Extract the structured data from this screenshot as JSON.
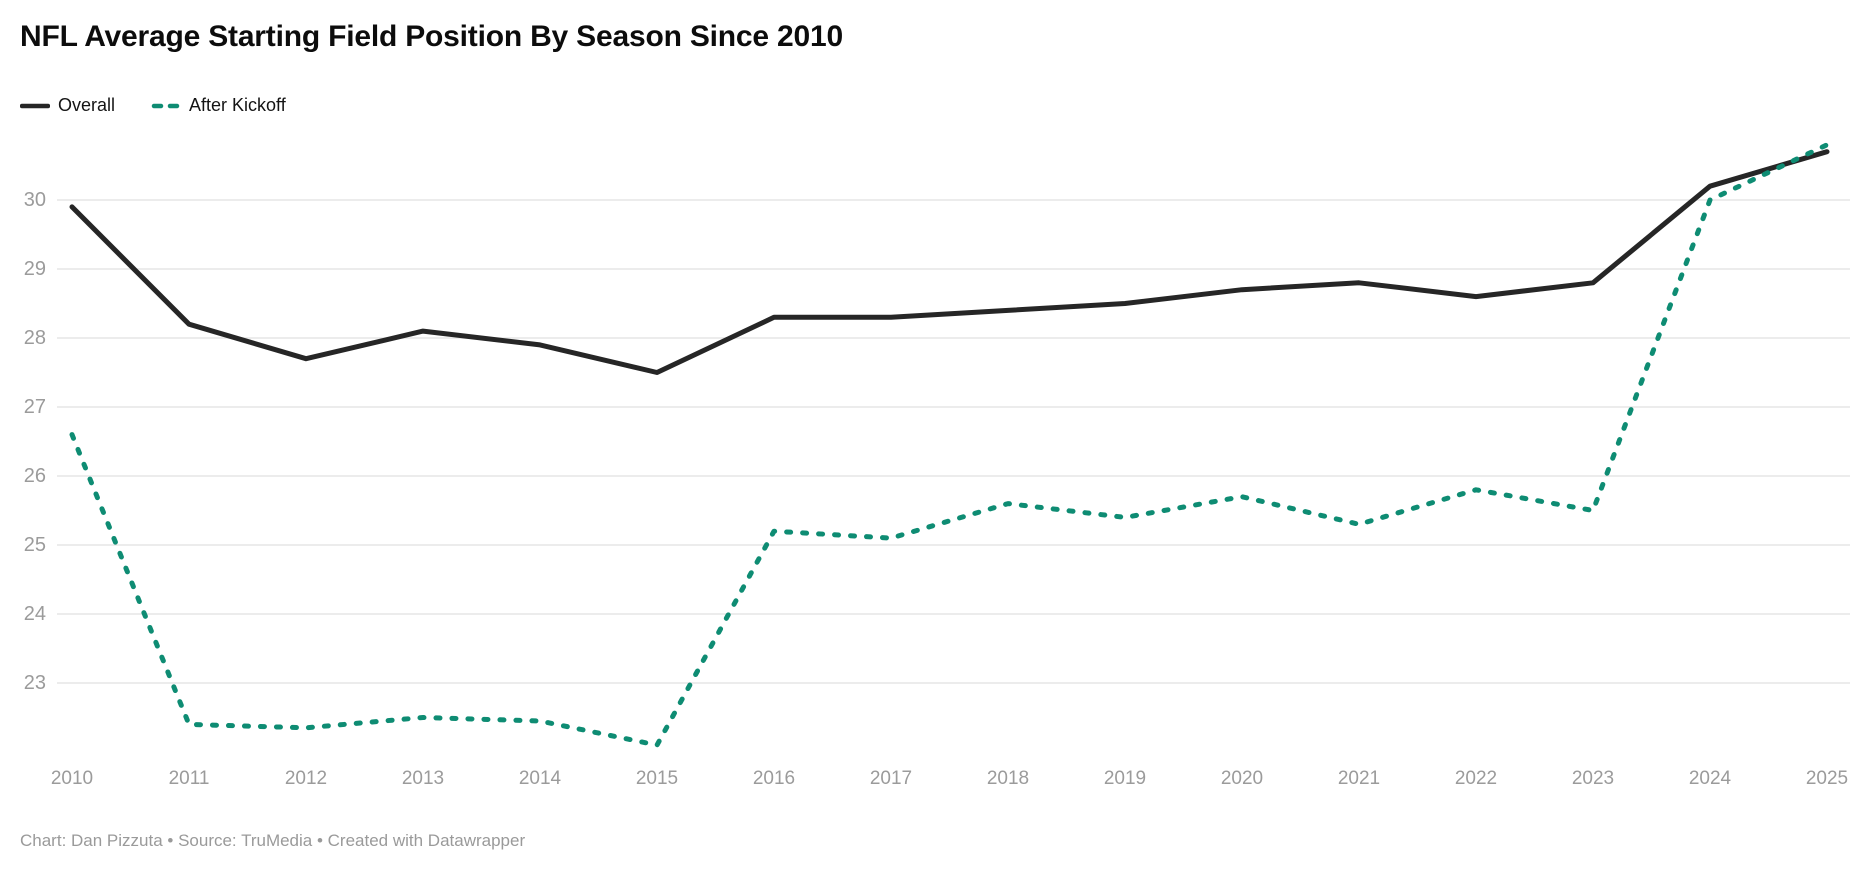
{
  "header": {
    "title": "NFL Average Starting Field Position By Season Since 2010"
  },
  "legend": {
    "items": [
      {
        "label": "Overall",
        "color": "#262626",
        "style": "solid"
      },
      {
        "label": "After Kickoff",
        "color": "#0e8c73",
        "style": "dashed"
      }
    ]
  },
  "footer": {
    "text": "Chart: Dan Pizzuta • Source: TruMedia • Created with Datawrapper"
  },
  "colors": {
    "overall_line": "#262626",
    "after_kickoff_line": "#0e8c73",
    "axis_label": "#9b9b9b",
    "gridline": "#e6e6e6",
    "footer_text": "#9a9a9a",
    "title_text": "#0c0c0c"
  },
  "chart_data": {
    "type": "line",
    "title": "NFL Average Starting Field Position By Season Since 2010",
    "xlabel": "",
    "ylabel": "",
    "x": [
      2010,
      2011,
      2012,
      2013,
      2014,
      2015,
      2016,
      2017,
      2018,
      2019,
      2020,
      2021,
      2022,
      2023,
      2024,
      2025
    ],
    "series": [
      {
        "name": "Overall",
        "style": "solid",
        "color": "#262626",
        "values": [
          29.9,
          28.2,
          27.7,
          28.1,
          27.9,
          27.5,
          28.3,
          28.3,
          28.4,
          28.5,
          28.7,
          28.8,
          28.6,
          28.8,
          30.2,
          30.7
        ]
      },
      {
        "name": "After Kickoff",
        "style": "dashed",
        "color": "#0e8c73",
        "values": [
          26.6,
          22.4,
          22.35,
          22.5,
          22.45,
          22.1,
          25.2,
          25.1,
          25.6,
          25.4,
          25.7,
          25.3,
          25.8,
          25.5,
          30.0,
          30.8
        ]
      }
    ],
    "y_ticks": [
      23,
      24,
      25,
      26,
      27,
      28,
      29,
      30
    ],
    "ylim": [
      22.0,
      31.0
    ],
    "grid": "horizontal",
    "legend_position": "top-left"
  }
}
